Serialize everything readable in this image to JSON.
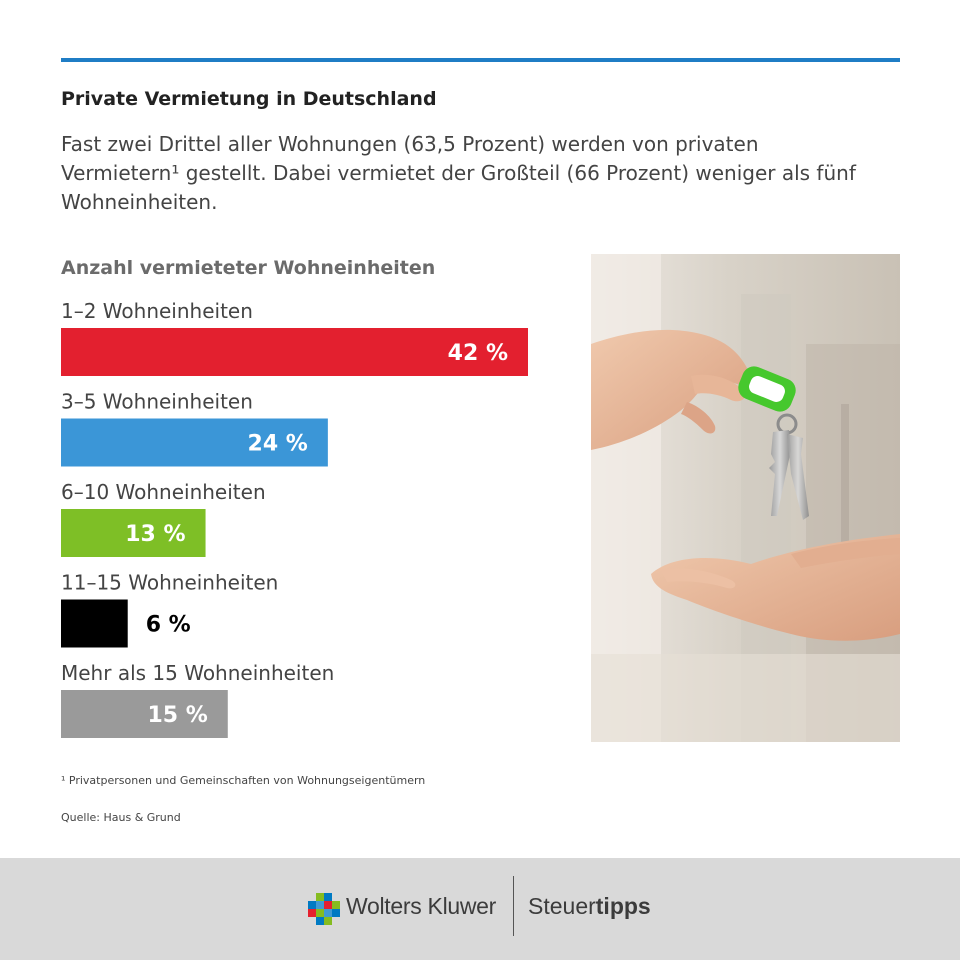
{
  "header": {
    "title": "Private Vermietung in Deutschland",
    "subtitle": "Fast zwei Drittel aller Wohnungen (63,5 Prozent) werden von privaten Vermietern¹ gestellt. Dabei vermietet der Großteil (66 Prozent) weniger als fünf Wohneinheiten."
  },
  "chart_data": {
    "type": "bar",
    "orientation": "horizontal",
    "title": "Anzahl vermieteter Wohneinheiten",
    "categories": [
      "1–2 Wohneinheiten",
      "3–5 Wohneinheiten",
      "6–10 Wohneinheiten",
      "11–15 Wohneinheiten",
      "Mehr als 15 Wohneinheiten"
    ],
    "values": [
      42,
      24,
      13,
      6,
      15
    ],
    "value_labels": [
      "42 %",
      "24 %",
      "13 %",
      "6 %",
      "15 %"
    ],
    "colors": [
      "#e3202f",
      "#3b96d7",
      "#7ebf26",
      "#000000",
      "#9a9a9a"
    ],
    "unit": "%",
    "xlim": [
      0,
      42
    ],
    "grid": false,
    "legend": "none"
  },
  "notes": {
    "footnote": "¹ Privatpersonen und Gemeinschaften von Wohnungseigentümern",
    "source": "Quelle: Haus & Grund"
  },
  "footer": {
    "brand": "Wolters Kluwer",
    "product_part1": "Steuer",
    "product_part2": "tipps",
    "brand_colors": [
      "#85bc20",
      "#007ac3",
      "#e5202e",
      "#409bd2"
    ]
  },
  "photo": {
    "icon": "hand-giving-keys-photo"
  }
}
